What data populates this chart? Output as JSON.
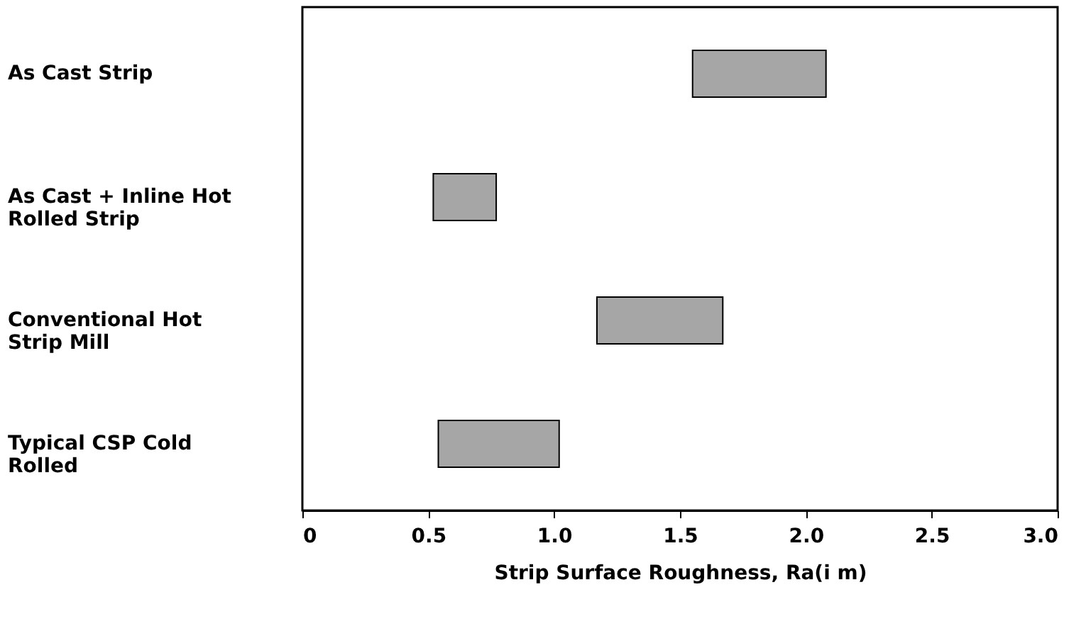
{
  "chart_data": {
    "type": "bar",
    "orientation": "horizontal",
    "categories": [
      "As Cast Strip",
      "As Cast + Inline Hot Rolled Strip",
      "Conventional Hot Strip Mill",
      "Typical CSP Cold Rolled"
    ],
    "base": [
      1.55,
      0.52,
      1.17,
      0.54
    ],
    "values": [
      0.53,
      0.25,
      0.5,
      0.48
    ],
    "color": "#a6a6a6",
    "xlabel": "Strip Surface Roughness, Ra(i m)",
    "xlim": [
      0,
      3
    ],
    "xticks": [
      0,
      0.5,
      {
        "value": 1,
        "label": "1.0"
      },
      1.5,
      {
        "value": 2,
        "label": "2.0"
      },
      2.5,
      {
        "value": 3,
        "label": "3.0"
      }
    ],
    "grid": false
  }
}
